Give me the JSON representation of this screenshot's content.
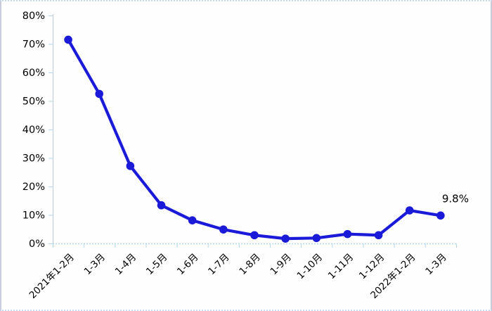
{
  "colors": {
    "line": "#1b1ad9",
    "marker": "#1b1ad9",
    "axis_line": "#c3ced6",
    "tick": "#b7d8e9",
    "baseline": "#b7d8e9",
    "text": "#000000",
    "frame_side": "#ccccdf",
    "frame_top_bottom": "#c8dbee",
    "background": "#fefefe"
  },
  "chart_data": {
    "type": "line",
    "categories": [
      "2021年1-2月",
      "1-3月",
      "1-4月",
      "1-5月",
      "1-6月",
      "1-7月",
      "1-8月",
      "1-9月",
      "1-10月",
      "1-11月",
      "1-12月",
      "2022年1-2月",
      "1-3月"
    ],
    "values": [
      71.5,
      52.5,
      27.2,
      13.4,
      8.1,
      4.9,
      2.9,
      1.7,
      1.9,
      3.3,
      2.9,
      11.6,
      9.8
    ],
    "title": "",
    "xlabel": "",
    "ylabel": "",
    "ylim": [
      0,
      80
    ],
    "ytick_step": 10,
    "ytick_labels": [
      "0%",
      "10%",
      "20%",
      "30%",
      "40%",
      "50%",
      "60%",
      "70%",
      "80%"
    ],
    "legend": "none",
    "grid": "baseline-only",
    "x_label_rotation_deg": -45,
    "annotation": {
      "text": "9.8%",
      "point_index": 12
    }
  }
}
